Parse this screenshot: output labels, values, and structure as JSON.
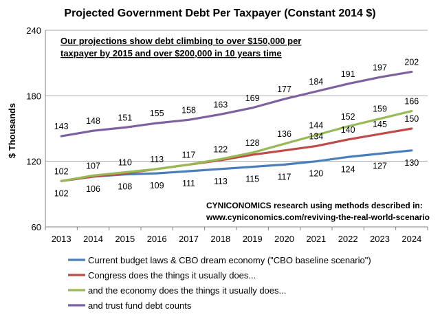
{
  "chart_data": {
    "type": "line",
    "title": "Projected Government Debt Per Taxpayer (Constant 2014 $)",
    "ylabel": "$ Thousands",
    "xlabel": "",
    "ylim": [
      60,
      240
    ],
    "yticks": [
      60,
      120,
      180,
      240
    ],
    "x": [
      "2013",
      "2014",
      "2015",
      "2016",
      "2017",
      "2018",
      "2019",
      "2020",
      "2021",
      "2022",
      "2023",
      "2024"
    ],
    "annotation_lines": [
      "Our projections show debt climbing to over $150,000 per",
      "taxpayer by 2015 and over $200,000 in 10 years time"
    ],
    "source_lines": [
      "CYNICONOMICS research using methods described in:",
      "www.cyniconomics.com/reviving-the-real-world-scenario"
    ],
    "series": [
      {
        "name": "Current budget laws & CBO dream economy (\"CBO baseline scenario\")",
        "color": "#4a7ebb",
        "values": [
          102,
          106,
          108,
          109,
          111,
          113,
          115,
          117,
          120,
          124,
          127,
          130
        ],
        "labels_below": true
      },
      {
        "name": "Congress does the things it usually does...",
        "color": "#be4b48",
        "values": [
          102,
          106,
          109,
          113,
          117,
          121,
          126,
          130,
          134,
          140,
          145,
          150
        ],
        "labels_below": false
      },
      {
        "name": "and the economy does the things it usually does...",
        "color": "#98b954",
        "values": [
          102,
          107,
          110,
          113,
          117,
          122,
          128,
          136,
          144,
          152,
          159,
          166
        ],
        "labels_below": false
      },
      {
        "name": "and trust fund debt counts",
        "color": "#7d60a0",
        "values": [
          143,
          148,
          151,
          155,
          158,
          163,
          169,
          177,
          184,
          191,
          197,
          202
        ],
        "labels_below": false
      }
    ],
    "visible_labels": [
      {
        "series": 0,
        "values": [
          102,
          106,
          108,
          109,
          111,
          113,
          115,
          117,
          120,
          124,
          127,
          130
        ]
      },
      {
        "series": 1,
        "values": [
          null,
          null,
          null,
          null,
          null,
          null,
          null,
          null,
          134,
          140,
          145,
          150
        ]
      },
      {
        "series": 2,
        "values": [
          102,
          107,
          110,
          113,
          117,
          122,
          128,
          136,
          144,
          152,
          159,
          166
        ]
      },
      {
        "series": 3,
        "values": [
          143,
          148,
          151,
          155,
          158,
          163,
          169,
          177,
          184,
          191,
          197,
          202
        ]
      }
    ],
    "legend_position": "bottom"
  }
}
